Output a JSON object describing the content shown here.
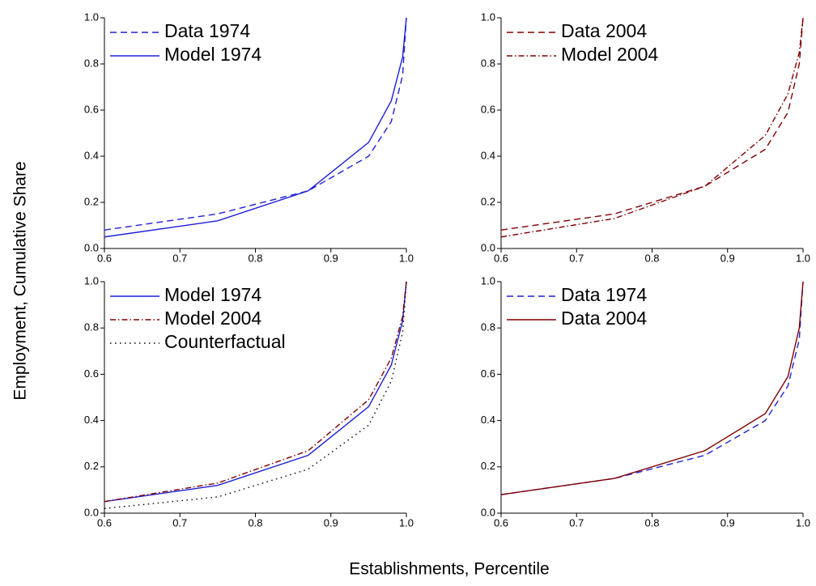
{
  "ylabel": "Employment, Cumulative Share",
  "xlabel": "Establishments, Percentile",
  "chart_data": [
    {
      "type": "line",
      "legend": "upper left",
      "x": [
        0.6,
        0.75,
        0.87,
        0.95,
        0.98,
        0.995,
        1.0
      ],
      "xlim": [
        0.6,
        1.0
      ],
      "ylim": [
        0,
        1
      ],
      "xticks": [
        0.6,
        0.7,
        0.8,
        0.9,
        {
          "value": 1.0,
          "label": "1.0"
        }
      ],
      "yticks": [
        {
          "value": 0,
          "label": "0.0"
        },
        0.2,
        0.4,
        0.6,
        0.8,
        {
          "value": 1.0,
          "label": "1.0"
        }
      ],
      "series": [
        {
          "name": "Data 1974",
          "color": "#1f1fd8",
          "dash": "dashed",
          "values": [
            0.08,
            0.15,
            0.25,
            0.4,
            0.55,
            0.75,
            1.0
          ]
        },
        {
          "name": "Model 1974",
          "color": "#1f1fd8",
          "dash": "solid",
          "values": [
            0.05,
            0.12,
            0.25,
            0.46,
            0.64,
            0.83,
            1.0
          ]
        }
      ]
    },
    {
      "type": "line",
      "legend": "upper left",
      "x": [
        0.6,
        0.75,
        0.87,
        0.95,
        0.98,
        0.995,
        1.0
      ],
      "xlim": [
        0.6,
        1.0
      ],
      "ylim": [
        0,
        1
      ],
      "xticks": [
        0.6,
        0.7,
        0.8,
        0.9,
        {
          "value": 1.0,
          "label": "1.0"
        }
      ],
      "yticks": [
        {
          "value": 0,
          "label": "0.0"
        },
        0.2,
        0.4,
        0.6,
        0.8,
        {
          "value": 1.0,
          "label": "1.0"
        }
      ],
      "series": [
        {
          "name": "Data 2004",
          "color": "#800000",
          "dash": "dashed",
          "values": [
            0.08,
            0.15,
            0.27,
            0.43,
            0.59,
            0.8,
            1.0
          ]
        },
        {
          "name": "Model 2004",
          "color": "#800000",
          "dash": "dashdot",
          "values": [
            0.05,
            0.13,
            0.27,
            0.49,
            0.67,
            0.85,
            1.0
          ]
        }
      ]
    },
    {
      "type": "line",
      "legend": "upper left",
      "x": [
        0.6,
        0.75,
        0.87,
        0.95,
        0.98,
        0.995,
        1.0
      ],
      "xlim": [
        0.6,
        1.0
      ],
      "ylim": [
        0,
        1
      ],
      "xticks": [
        0.6,
        0.7,
        0.8,
        0.9,
        {
          "value": 1.0,
          "label": "1.0"
        }
      ],
      "yticks": [
        {
          "value": 0,
          "label": "0.0"
        },
        0.2,
        0.4,
        0.6,
        0.8,
        {
          "value": 1.0,
          "label": "1.0"
        }
      ],
      "series": [
        {
          "name": "Model 1974",
          "color": "#1f1fd8",
          "dash": "solid",
          "values": [
            0.05,
            0.12,
            0.25,
            0.46,
            0.64,
            0.83,
            1.0
          ]
        },
        {
          "name": "Model 2004",
          "color": "#800000",
          "dash": "dashdot",
          "values": [
            0.05,
            0.13,
            0.27,
            0.49,
            0.67,
            0.85,
            1.0
          ]
        },
        {
          "name": "Counterfactual",
          "color": "#000000",
          "dash": "dotted",
          "values": [
            0.02,
            0.07,
            0.19,
            0.38,
            0.57,
            0.78,
            1.0
          ]
        }
      ]
    },
    {
      "type": "line",
      "legend": "upper left",
      "x": [
        0.6,
        0.75,
        0.87,
        0.95,
        0.98,
        0.995,
        1.0
      ],
      "xlim": [
        0.6,
        1.0
      ],
      "ylim": [
        0,
        1
      ],
      "xticks": [
        0.6,
        0.7,
        0.8,
        0.9,
        {
          "value": 1.0,
          "label": "1.0"
        }
      ],
      "yticks": [
        {
          "value": 0,
          "label": "0.0"
        },
        0.2,
        0.4,
        0.6,
        0.8,
        {
          "value": 1.0,
          "label": "1.0"
        }
      ],
      "series": [
        {
          "name": "Data 1974",
          "color": "#1f1fd8",
          "dash": "dashed",
          "values": [
            0.08,
            0.15,
            0.25,
            0.4,
            0.55,
            0.75,
            1.0
          ]
        },
        {
          "name": "Data 2004",
          "color": "#800000",
          "dash": "solid",
          "values": [
            0.08,
            0.15,
            0.27,
            0.43,
            0.59,
            0.8,
            1.0
          ]
        }
      ]
    }
  ]
}
